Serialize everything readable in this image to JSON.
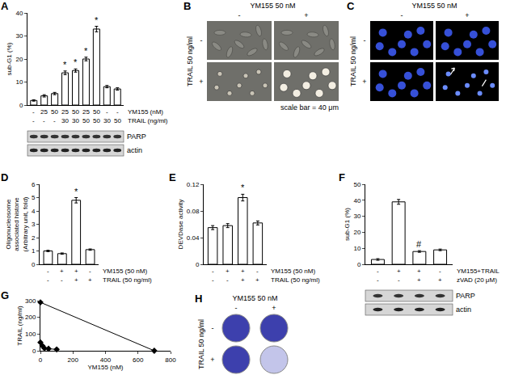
{
  "chart_data": [
    {
      "panel": "A",
      "type": "bar",
      "y_label": "sub-G1 (%)",
      "values": [
        2,
        4,
        5,
        14,
        15,
        20,
        33,
        8,
        7
      ],
      "errors": [
        0.3,
        0.5,
        0.5,
        0.8,
        0.7,
        0.8,
        1.2,
        0.5,
        0.5
      ],
      "color": "#ffffff",
      "ylim": [
        0,
        40
      ],
      "yticks": [
        0,
        10,
        20,
        30,
        40
      ],
      "tick_labels": "y",
      "treatments": [
        {
          "label": "YM155 (nM)",
          "values": [
            "-",
            "25",
            "50",
            "25",
            "50",
            "25",
            "50",
            "-",
            "-"
          ]
        },
        {
          "label": "TRAIL (ng/ml)",
          "values": [
            "-",
            "-",
            "-",
            "30",
            "30",
            "50",
            "50",
            "30",
            "50"
          ]
        }
      ],
      "annotations": [
        {
          "index": 3,
          "text": "*"
        },
        {
          "index": 4,
          "text": "*"
        },
        {
          "index": 5,
          "text": "*"
        },
        {
          "index": 6,
          "text": "*"
        }
      ],
      "blot": [
        "PARP",
        "actin"
      ]
    },
    {
      "panel": "D",
      "type": "bar",
      "y_label": "Oligonucleosome associated histone (Arbitrary unit, fold)",
      "values": [
        1,
        0.8,
        4.8,
        1.1
      ],
      "errors": [
        0.05,
        0.05,
        0.2,
        0.05
      ],
      "color": "#ffffff",
      "ylim": [
        0,
        6
      ],
      "yticks": [
        0,
        1,
        2,
        3,
        4,
        5,
        6
      ],
      "tick_labels": "y",
      "treatments": [
        {
          "label": "YM155 (50 nM)",
          "values": [
            "-",
            "+",
            "+",
            "-"
          ]
        },
        {
          "label": "TRAIL (50 ng/ml)",
          "values": [
            "-",
            "-",
            "+",
            "+"
          ]
        }
      ],
      "annotations": [
        {
          "index": 2,
          "text": "*"
        }
      ]
    },
    {
      "panel": "E",
      "type": "bar",
      "y_label": "DEVDase activity",
      "values": [
        0.055,
        0.058,
        0.1,
        0.062
      ],
      "errors": [
        0.003,
        0.003,
        0.005,
        0.003
      ],
      "color": "#ffffff",
      "ylim": [
        0,
        0.12
      ],
      "yticks": [
        0,
        0.04,
        0.08,
        0.12
      ],
      "tick_labels": "y",
      "treatments": [
        {
          "label": "YM155 (50 nM)",
          "values": [
            "-",
            "+",
            "+",
            "-"
          ]
        },
        {
          "label": "TRAIL (50 ng/ml)",
          "values": [
            "-",
            "-",
            "+",
            "+"
          ]
        }
      ],
      "annotations": [
        {
          "index": 2,
          "text": "*"
        }
      ]
    },
    {
      "panel": "F",
      "type": "bar",
      "y_label": "sub-G1 (%)",
      "values": [
        3,
        39,
        8,
        9
      ],
      "errors": [
        0.5,
        1.5,
        0.5,
        0.5
      ],
      "color": "#ffffff",
      "ylim": [
        0,
        50
      ],
      "yticks": [
        0,
        10,
        20,
        30,
        40,
        50
      ],
      "tick_labels": "y",
      "treatments": [
        {
          "label": "YM155+TRAIL",
          "values": [
            "-",
            "+",
            "+",
            "-"
          ]
        },
        {
          "label": "zVAD (20 μM)",
          "values": [
            "-",
            "-",
            "+",
            "+"
          ]
        }
      ],
      "annotations": [
        {
          "index": 2,
          "text": "#"
        }
      ],
      "blot": [
        "PARP",
        "actin"
      ]
    },
    {
      "panel": "G",
      "type": "scatter",
      "x_label": "YM155 (nM)",
      "y_label": "TRAIL (ng/ml)",
      "xlim": [
        0,
        800
      ],
      "xticks": [
        0,
        200,
        400,
        600,
        800
      ],
      "ylim": [
        0,
        300
      ],
      "yticks": [
        0,
        100,
        200,
        300
      ],
      "marker": "diamond",
      "color": "#000000",
      "series": [
        {
          "x": [
            0,
            700
          ],
          "y": [
            290,
            0
          ]
        },
        {
          "x": [
            0,
            12,
            25,
            50,
            100
          ],
          "y": [
            50,
            30,
            15,
            12,
            8
          ]
        }
      ]
    }
  ],
  "images": [
    {
      "panel": "B",
      "style": "phase",
      "top_label": "YM155 50 nM",
      "col_labels": [
        "-",
        "+"
      ],
      "side_label": "TRAIL 50 ng/ml",
      "row_labels": [
        "-",
        "+"
      ],
      "caption": "scale bar = 40 μm"
    },
    {
      "panel": "C",
      "style": "fluorescence",
      "top_label": "YM155 50 nM",
      "col_labels": [
        "-",
        "+"
      ],
      "side_label": "TRAIL 50 ng/ml",
      "row_labels": [
        "-",
        "+"
      ]
    },
    {
      "panel": "H",
      "style": "plate",
      "top_label": "YM155 50 nM",
      "col_labels": [
        "-",
        "+"
      ],
      "side_label": "TRAIL 50 ng/ml",
      "row_labels": [
        "-",
        "+"
      ]
    }
  ]
}
